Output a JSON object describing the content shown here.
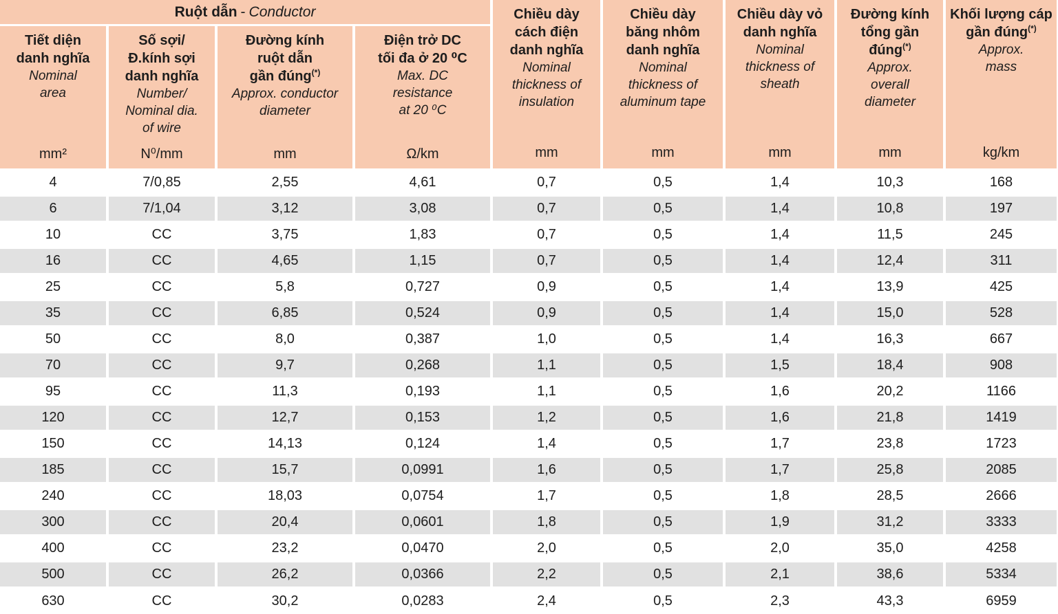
{
  "colors": {
    "header_bg": "#f8cab0",
    "row_bg": "#ffffff",
    "row_alt_bg": "#e1e1e1",
    "text": "#1d1d1d"
  },
  "table": {
    "group_header": {
      "vn": "Ruột dẫn",
      "sep": "-",
      "en": "Conductor"
    },
    "columns": [
      {
        "vn": "Tiết diện\ndanh nghĩa",
        "en": "Nominal\narea",
        "unit": "mm²"
      },
      {
        "vn": "Số sợi/\nĐ.kính sợi\ndanh nghĩa",
        "en": "Number/\nNominal dia.\nof wire",
        "unit": "N⁰/mm"
      },
      {
        "vn": "Đường kính\nruột dẫn\ngần đúng",
        "vn_sup": "(*)",
        "en": "Approx. conductor\ndiameter",
        "unit": "mm"
      },
      {
        "vn": "Điện trở DC\ntối đa ở 20 ⁰C",
        "en": "Max. DC\nresistance\nat 20 ⁰C",
        "unit": "Ω/km"
      },
      {
        "vn": "Chiều dày\ncách điện\ndanh nghĩa",
        "en": "Nominal\nthickness of\ninsulation",
        "unit": "mm"
      },
      {
        "vn": "Chiều dày\nbăng nhôm\ndanh nghĩa",
        "en": "Nominal\nthickness of\naluminum tape",
        "unit": "mm"
      },
      {
        "vn": "Chiều dày vỏ\ndanh nghĩa",
        "en": "Nominal\nthickness of\nsheath",
        "unit": "mm"
      },
      {
        "vn": "Đường kính\ntổng gần\nđúng",
        "vn_sup": "(*)",
        "en": "Approx.\noverall\ndiameter",
        "unit": "mm"
      },
      {
        "vn": "Khối lượng cáp\ngần đúng",
        "vn_sup": "(*)",
        "en": "Approx.\nmass",
        "unit": "kg/km"
      }
    ],
    "rows": [
      [
        "4",
        "7/0,85",
        "2,55",
        "4,61",
        "0,7",
        "0,5",
        "1,4",
        "10,3",
        "168"
      ],
      [
        "6",
        "7/1,04",
        "3,12",
        "3,08",
        "0,7",
        "0,5",
        "1,4",
        "10,8",
        "197"
      ],
      [
        "10",
        "CC",
        "3,75",
        "1,83",
        "0,7",
        "0,5",
        "1,4",
        "11,5",
        "245"
      ],
      [
        "16",
        "CC",
        "4,65",
        "1,15",
        "0,7",
        "0,5",
        "1,4",
        "12,4",
        "311"
      ],
      [
        "25",
        "CC",
        "5,8",
        "0,727",
        "0,9",
        "0,5",
        "1,4",
        "13,9",
        "425"
      ],
      [
        "35",
        "CC",
        "6,85",
        "0,524",
        "0,9",
        "0,5",
        "1,4",
        "15,0",
        "528"
      ],
      [
        "50",
        "CC",
        "8,0",
        "0,387",
        "1,0",
        "0,5",
        "1,4",
        "16,3",
        "667"
      ],
      [
        "70",
        "CC",
        "9,7",
        "0,268",
        "1,1",
        "0,5",
        "1,5",
        "18,4",
        "908"
      ],
      [
        "95",
        "CC",
        "11,3",
        "0,193",
        "1,1",
        "0,5",
        "1,6",
        "20,2",
        "1166"
      ],
      [
        "120",
        "CC",
        "12,7",
        "0,153",
        "1,2",
        "0,5",
        "1,6",
        "21,8",
        "1419"
      ],
      [
        "150",
        "CC",
        "14,13",
        "0,124",
        "1,4",
        "0,5",
        "1,7",
        "23,8",
        "1723"
      ],
      [
        "185",
        "CC",
        "15,7",
        "0,0991",
        "1,6",
        "0,5",
        "1,7",
        "25,8",
        "2085"
      ],
      [
        "240",
        "CC",
        "18,03",
        "0,0754",
        "1,7",
        "0,5",
        "1,8",
        "28,5",
        "2666"
      ],
      [
        "300",
        "CC",
        "20,4",
        "0,0601",
        "1,8",
        "0,5",
        "1,9",
        "31,2",
        "3333"
      ],
      [
        "400",
        "CC",
        "23,2",
        "0,0470",
        "2,0",
        "0,5",
        "2,0",
        "35,0",
        "4258"
      ],
      [
        "500",
        "CC",
        "26,2",
        "0,0366",
        "2,2",
        "0,5",
        "2,1",
        "38,6",
        "5334"
      ],
      [
        "630",
        "CC",
        "30,2",
        "0,0283",
        "2,4",
        "0,5",
        "2,3",
        "43,3",
        "6959"
      ]
    ]
  }
}
